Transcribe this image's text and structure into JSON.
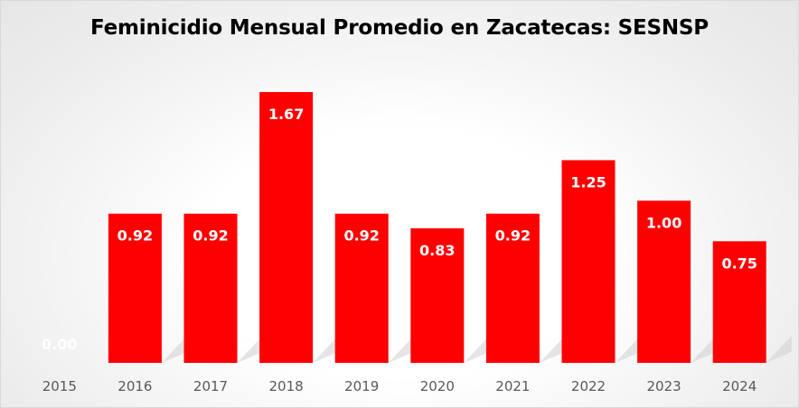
{
  "chart_data": {
    "type": "bar",
    "title": "Feminicidio Mensual Promedio en Zacatecas: SESNSP",
    "xlabel": "",
    "ylabel": "",
    "categories": [
      "2015",
      "2016",
      "2017",
      "2018",
      "2019",
      "2020",
      "2021",
      "2022",
      "2023",
      "2024"
    ],
    "values": [
      0.0,
      0.92,
      0.92,
      1.67,
      0.92,
      0.83,
      0.92,
      1.25,
      1.0,
      0.75
    ],
    "value_labels": [
      "0.00",
      "0.92",
      "0.92",
      "1.67",
      "0.92",
      "0.83",
      "0.92",
      "1.25",
      "1.00",
      "0.75"
    ],
    "ylim": [
      0,
      1.8
    ],
    "grid": false,
    "legend": "none",
    "bar_color": "#ff0000",
    "label_color": "#ffffff",
    "tick_label_color": "#595959"
  }
}
